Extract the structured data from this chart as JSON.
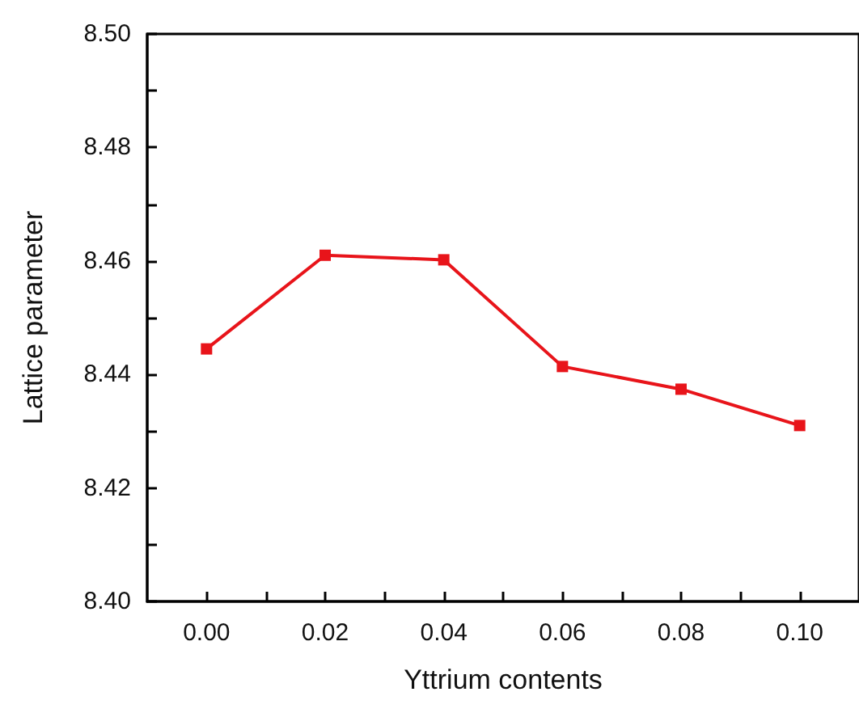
{
  "chart_data": {
    "type": "line",
    "xlabel": "Yttrium contents",
    "ylabel": "Lattice parameter",
    "x": [
      0,
      0.02,
      0.04,
      0.06,
      0.08,
      0.1
    ],
    "series": [
      {
        "color": "#e8141a",
        "values": [
          8.4445,
          8.461,
          8.4602,
          8.4414,
          8.4374,
          8.431
        ]
      }
    ],
    "marker": "square",
    "line_style": "solid",
    "grid": false,
    "xlim": [
      -0.01,
      0.11
    ],
    "xticks": [
      {
        "value": 0,
        "label": "0.00"
      },
      {
        "value": 0.01,
        "label": null
      },
      {
        "value": 0.02,
        "label": "0.02"
      },
      {
        "value": 0.03,
        "label": null
      },
      {
        "value": 0.04,
        "label": "0.04"
      },
      {
        "value": 0.05,
        "label": null
      },
      {
        "value": 0.06,
        "label": "0.06"
      },
      {
        "value": 0.07,
        "label": null
      },
      {
        "value": 0.08,
        "label": "0.08"
      },
      {
        "value": 0.09,
        "label": null
      },
      {
        "value": 0.1,
        "label": "0.10"
      }
    ],
    "ylim": [
      8.4,
      8.5
    ],
    "yticks": [
      {
        "value": 8.4,
        "label": "8.40"
      },
      {
        "value": 8.41,
        "label": null
      },
      {
        "value": 8.42,
        "label": "8.42"
      },
      {
        "value": 8.43,
        "label": null
      },
      {
        "value": 8.44,
        "label": "8.44"
      },
      {
        "value": 8.45,
        "label": null
      },
      {
        "value": 8.46,
        "label": "8.46"
      },
      {
        "value": 8.47,
        "label": null
      },
      {
        "value": 8.48,
        "label": "8.48"
      },
      {
        "value": 8.49,
        "label": null
      },
      {
        "value": 8.5,
        "label": "8.50"
      }
    ]
  }
}
